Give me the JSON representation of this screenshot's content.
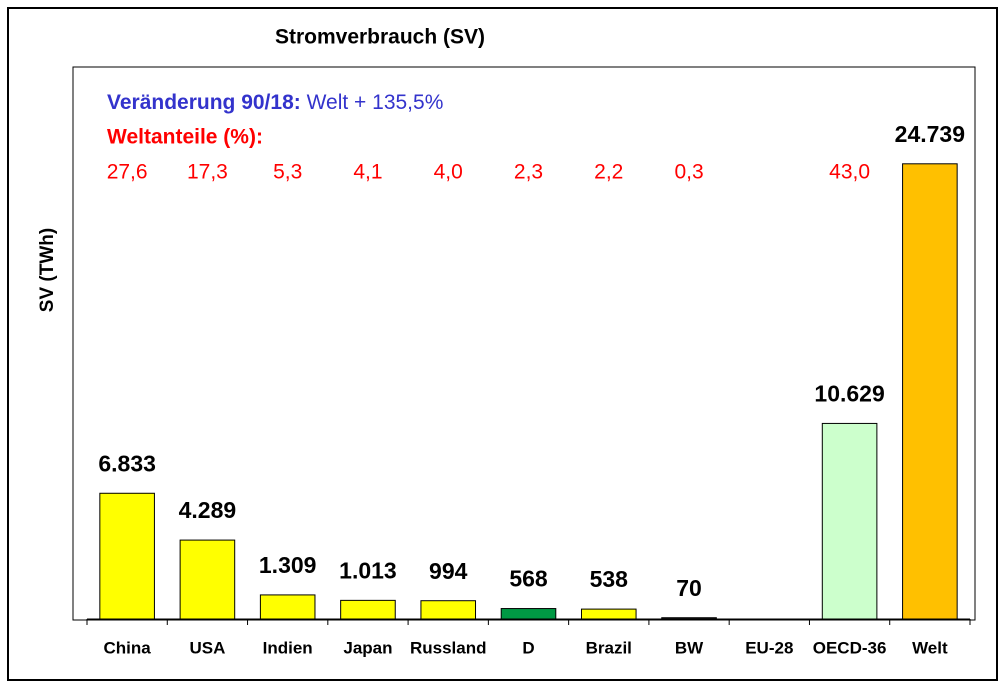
{
  "chart_data": {
    "type": "bar",
    "title": "Stromverbrauch (SV)",
    "y_label": "SV (TWh)",
    "annotations": {
      "change_label": "Veränderung 90/18:",
      "change_text": "Welt + 135,5%",
      "share_title": "Weltanteile (%):"
    },
    "categories": [
      "China",
      "USA",
      "Indien",
      "Japan",
      "Russland",
      "D",
      "Brazil",
      "BW",
      "EU-28",
      "OECD-36",
      "Welt"
    ],
    "values": [
      6833,
      4289,
      1309,
      1013,
      994,
      568,
      538,
      70,
      null,
      10629,
      24739
    ],
    "value_labels": [
      "6.833",
      "4.289",
      "1.309",
      "1.013",
      "994",
      "568",
      "538",
      "70",
      null,
      "10.629",
      "24.739"
    ],
    "colors": [
      "#ffff00",
      "#ffff00",
      "#ffff00",
      "#ffff00",
      "#ffff00",
      "#009944",
      "#ffff00",
      "#222222",
      "#ffff00",
      "#ccffcc",
      "#ffc000"
    ],
    "shares": [
      27.6,
      17.3,
      5.3,
      4.1,
      4.0,
      2.3,
      2.2,
      0.3,
      null,
      43.0,
      null
    ],
    "share_labels": [
      "27,6",
      "17,3",
      "5,3",
      "4,1",
      "4,0",
      "2,3",
      "2,2",
      "0,3",
      null,
      "43,0",
      null
    ],
    "ylim": [
      0,
      30000
    ]
  }
}
